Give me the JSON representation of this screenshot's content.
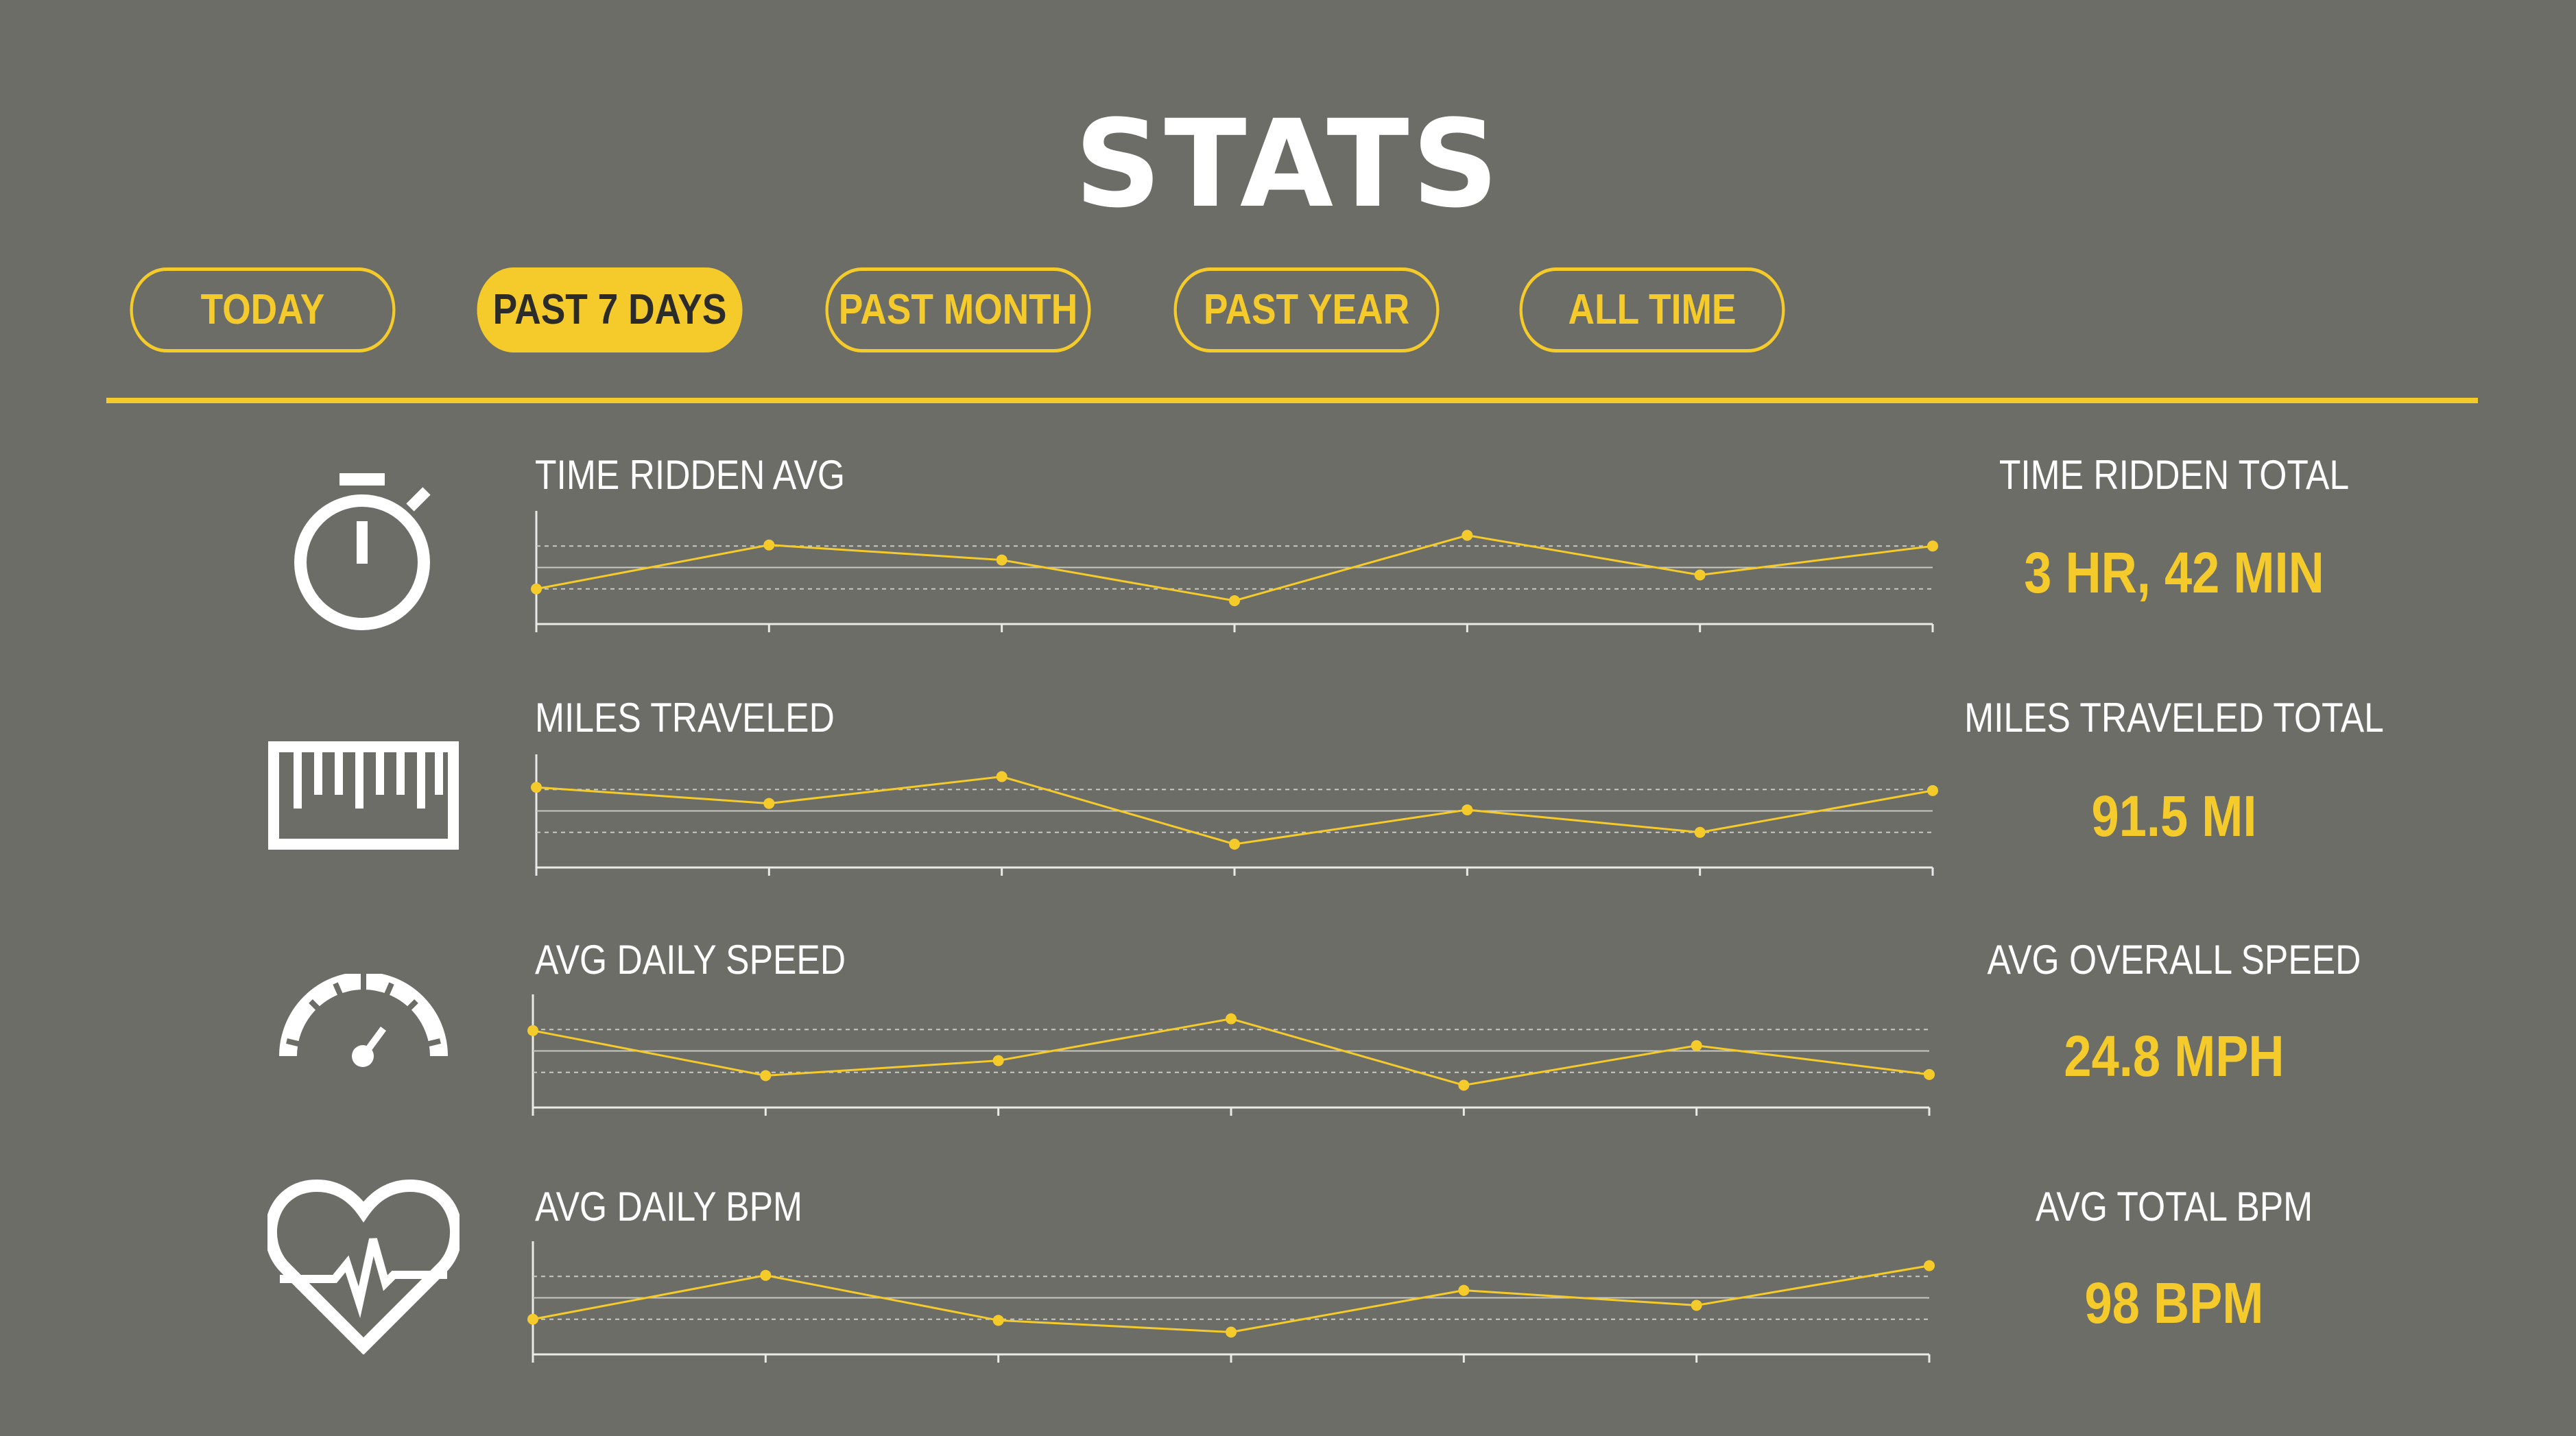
{
  "page": {
    "title": "STATS"
  },
  "tabs": [
    {
      "label": "TODAY",
      "active": false
    },
    {
      "label": "PAST 7 DAYS",
      "active": true
    },
    {
      "label": "PAST MONTH",
      "active": false
    },
    {
      "label": "PAST YEAR",
      "active": false
    },
    {
      "label": "ALL TIME",
      "active": false
    }
  ],
  "colors": {
    "accent": "#f5cb2c",
    "background": "#6d6d68",
    "text": "#ffffff"
  },
  "stats": [
    {
      "icon": "stopwatch-icon",
      "chart_label": "TIME RIDDEN AVG",
      "total_label": "TIME RIDDEN TOTAL",
      "total_value": "3 HR, 42 MIN"
    },
    {
      "icon": "ruler-icon",
      "chart_label": "MILES TRAVELED",
      "total_label": "MILES TRAVELED TOTAL",
      "total_value": "91.5 MI"
    },
    {
      "icon": "speedometer-icon",
      "chart_label": "AVG DAILY SPEED",
      "total_label": "AVG OVERALL SPEED",
      "total_value": "24.8 MPH"
    },
    {
      "icon": "heart-rate-icon",
      "chart_label": "AVG DAILY BPM",
      "total_label": "AVG TOTAL BPM",
      "total_value": "98 BPM"
    }
  ],
  "chart_data": [
    {
      "type": "line",
      "title": "TIME RIDDEN AVG",
      "x": [
        1,
        2,
        3,
        4,
        5,
        6,
        7
      ],
      "values": [
        -1.0,
        1.05,
        0.35,
        -1.55,
        1.5,
        -0.35,
        1.0
      ],
      "ylim": [
        -2,
        2
      ],
      "grid": true
    },
    {
      "type": "line",
      "title": "MILES TRAVELED",
      "x": [
        1,
        2,
        3,
        4,
        5,
        6,
        7
      ],
      "values": [
        1.1,
        0.35,
        1.6,
        -1.55,
        0.05,
        -1.0,
        0.95
      ],
      "ylim": [
        -2,
        2
      ],
      "grid": true
    },
    {
      "type": "line",
      "title": "AVG DAILY SPEED",
      "x": [
        1,
        2,
        3,
        4,
        5,
        6,
        7
      ],
      "values": [
        0.95,
        -1.15,
        -0.45,
        1.5,
        -1.6,
        0.25,
        -1.1
      ],
      "ylim": [
        -2,
        2
      ],
      "grid": true
    },
    {
      "type": "line",
      "title": "AVG DAILY BPM",
      "x": [
        1,
        2,
        3,
        4,
        5,
        6,
        7
      ],
      "values": [
        -1.0,
        1.05,
        -1.05,
        -1.6,
        0.35,
        -0.35,
        1.5
      ],
      "ylim": [
        -2,
        2
      ],
      "grid": true
    }
  ]
}
